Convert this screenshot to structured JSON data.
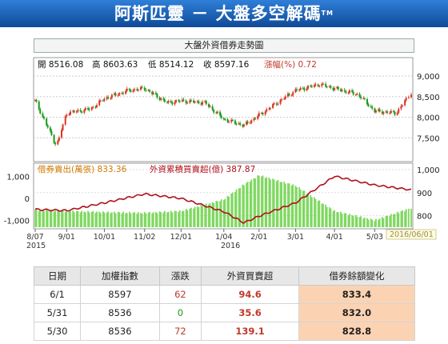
{
  "header": {
    "title": "阿斯匹靈 － 大盤多空解碼",
    "tm": "TM"
  },
  "chart_data": {
    "type": "line",
    "title": "大盤外資借券走勢圖",
    "top_panel": {
      "ohlc_text": {
        "open": "開 8516.08",
        "high": "高 8603.63",
        "low": "低 8514.12",
        "close": "收 8597.16"
      },
      "change_label": "漲幅(%) 0.72",
      "ylim": [
        7000,
        9100
      ],
      "yticks": [
        "9,000",
        "8,500",
        "8,000",
        "7,500"
      ],
      "series": [
        {
          "name": "加權指數",
          "x": [
            "2015-08-07",
            "2015-08-24",
            "2015-09-01",
            "2015-09-20",
            "2015-10-01",
            "2015-10-20",
            "2015-11-02",
            "2015-11-20",
            "2015-12-01",
            "2015-12-20",
            "2016-01-04",
            "2016-01-20",
            "2016-02-01",
            "2016-02-20",
            "2016-03-01",
            "2016-03-20",
            "2016-04-01",
            "2016-04-20",
            "2016-05-03",
            "2016-05-20",
            "2016-06-01"
          ],
          "values": [
            8400,
            7300,
            8100,
            8200,
            8450,
            8650,
            8700,
            8350,
            8400,
            8350,
            7950,
            7800,
            8050,
            8450,
            8650,
            8800,
            8700,
            8550,
            8150,
            8100,
            8597
          ]
        }
      ]
    },
    "bottom_panel": {
      "legend_short": "借券賣出(萬張) 833.36",
      "legend_foreign": "外資累積買賣超(億) 387.87",
      "left_yticks": [
        "1,000",
        "0",
        "-1,000"
      ],
      "right_yticks": [
        "1,000",
        "900",
        "800"
      ],
      "series": [
        {
          "name": "借券賣出(萬張)",
          "x": [
            "2015-08-07",
            "2015-09-01",
            "2015-10-01",
            "2015-11-02",
            "2015-12-01",
            "2016-01-04",
            "2016-01-20",
            "2016-02-01",
            "2016-03-01",
            "2016-04-01",
            "2016-05-03",
            "2016-06-01"
          ],
          "values": [
            825,
            820,
            815,
            812,
            820,
            870,
            935,
            975,
            930,
            820,
            780,
            833.36
          ]
        },
        {
          "name": "外資累積買賣超(億)",
          "x": [
            "2015-08-07",
            "2015-09-01",
            "2015-10-01",
            "2015-11-02",
            "2015-12-01",
            "2016-01-04",
            "2016-01-20",
            "2016-02-01",
            "2016-03-01",
            "2016-04-01",
            "2016-05-03",
            "2016-06-01"
          ],
          "values": [
            -500,
            -550,
            -200,
            200,
            0,
            -600,
            -1100,
            -800,
            -200,
            1000,
            600,
            387.87
          ]
        }
      ]
    },
    "xticks": [
      "8/07",
      "9/01",
      "10/01",
      "11/02",
      "12/01",
      "1/04",
      "2/01",
      "3/01",
      "4/01",
      "5/03"
    ],
    "year_labels": [
      "2015",
      "2016"
    ],
    "date_badge": "2016/06/01"
  },
  "table": {
    "headers": [
      "日期",
      "加權指數",
      "漲跌",
      "外資買賣超",
      "借券餘額變化"
    ],
    "rows": [
      {
        "date": "6/1",
        "index": "8597",
        "change": "62",
        "net": "94.6",
        "balance": "833.4"
      },
      {
        "date": "5/31",
        "index": "8536",
        "change": "0",
        "net": "35.6",
        "balance": "832.0"
      },
      {
        "date": "5/30",
        "index": "8536",
        "change": "72",
        "net": "139.1",
        "balance": "828.8"
      }
    ]
  },
  "colors": {
    "banner": "#1b5fb0",
    "index_up": "#d32",
    "index_down": "#1a9a1a",
    "bars": "#7fd860",
    "foreign_line": "#b0101c"
  }
}
